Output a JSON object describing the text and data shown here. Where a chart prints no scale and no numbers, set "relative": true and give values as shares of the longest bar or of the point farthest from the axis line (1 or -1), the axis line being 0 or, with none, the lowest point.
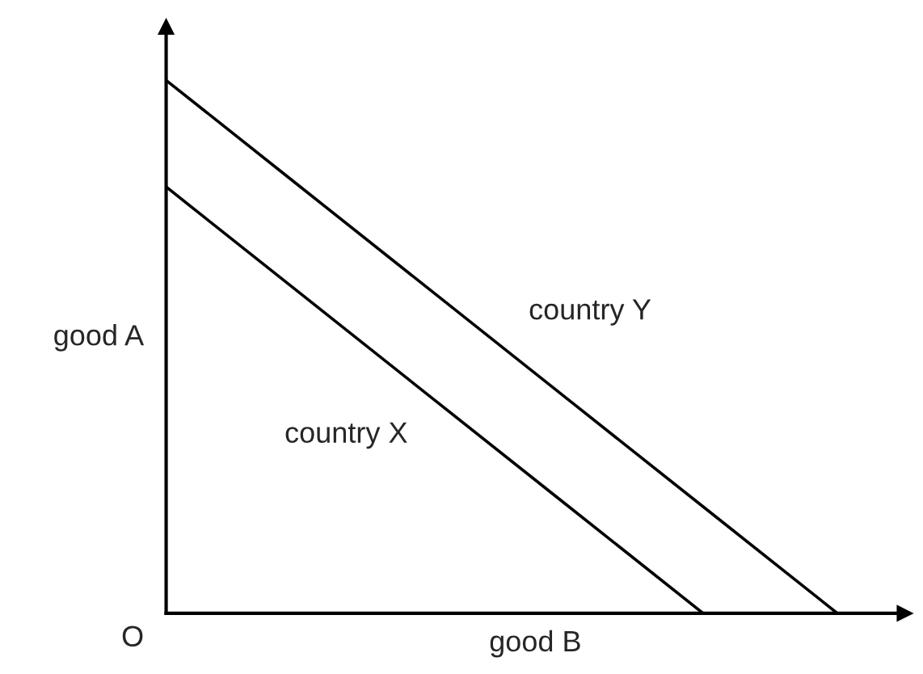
{
  "chart_data": {
    "type": "line",
    "relative": true,
    "xlabel": "good B",
    "ylabel": "good A",
    "annotations": [
      "O"
    ],
    "legend": false,
    "categories": [
      null,
      null,
      null,
      null,
      null,
      null
    ],
    "series": [
      {
        "name": "country Y",
        "color": "#000000",
        "values": [
          1,
          0.8,
          0.6,
          0.4,
          0.2,
          0
        ]
      },
      {
        "name": "country X",
        "color": "#000000",
        "values": [
          0.8,
          0.6,
          0.4,
          0.2,
          0,
          null
        ]
      }
    ]
  }
}
